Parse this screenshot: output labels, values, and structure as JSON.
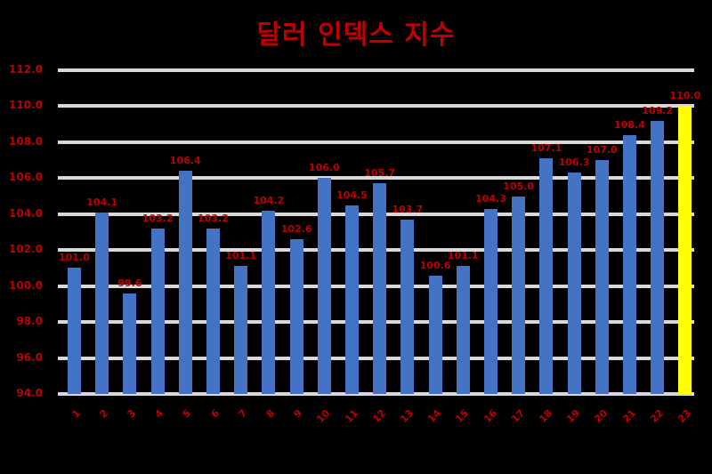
{
  "chart_data": {
    "type": "bar",
    "title": "달러 인덱스 지수",
    "xlabel": "",
    "ylabel": "",
    "ylim": [
      94.0,
      112.0
    ],
    "yticks": [
      "94.0",
      "96.0",
      "98.0",
      "100.0",
      "102.0",
      "104.0",
      "106.0",
      "108.0",
      "110.0",
      "112.0"
    ],
    "grid": true,
    "legend": "none",
    "categories": [
      "1",
      "2",
      "3",
      "4",
      "5",
      "6",
      "7",
      "8",
      "9",
      "10",
      "11",
      "12",
      "13",
      "14",
      "15",
      "16",
      "17",
      "18",
      "19",
      "20",
      "21",
      "22",
      "23"
    ],
    "values": [
      101.0,
      104.1,
      99.6,
      103.2,
      106.4,
      103.2,
      101.1,
      104.2,
      102.6,
      106.0,
      104.5,
      105.7,
      103.7,
      100.6,
      101.1,
      104.3,
      105.0,
      107.1,
      106.3,
      107.0,
      108.4,
      109.2,
      110.0
    ],
    "bar_color": "#4472c4",
    "highlight_color": "#ffff00",
    "highlight_index": 22,
    "label_color": "#c00000"
  }
}
